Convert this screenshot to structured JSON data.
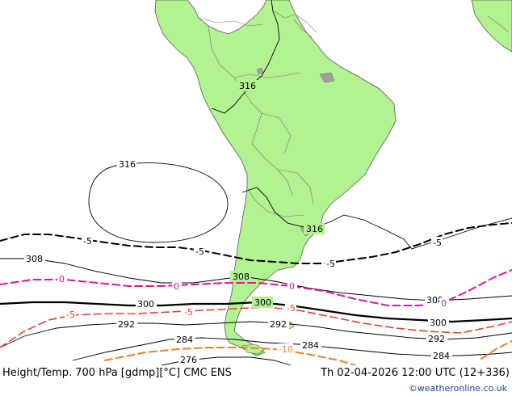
{
  "title": {
    "product": "Height/Temp. 700 hPa [gdmp][°C] CMC ENS",
    "valid_time": "Th 02-04-2026 12:00 UTC (12+336)",
    "credit": "©weatheronline.co.uk"
  },
  "colors": {
    "land": "#b3f291",
    "border": "#777777",
    "height_contour": "#000000",
    "temp_minus5_line": "#000000",
    "temp_0_line": "#e0149a",
    "temp_warm_line": "#e84030",
    "temp_minus10_line": "#f07d28",
    "lake": "#a0a0a0"
  },
  "height_labels": {
    "h316_a": "316",
    "h316_b": "316",
    "h316_c": "316",
    "h308_a": "308",
    "h308_b": "308",
    "h308_c": "308",
    "h300_a": "300",
    "h300_b": "300",
    "h300_c": "300",
    "h292_a": "292",
    "h292_b": "292",
    "h292_c": "292",
    "h284_a": "284",
    "h284_b": "284",
    "h284_c": "284",
    "h276_a": "276"
  },
  "temp_labels": {
    "tm5_a": "-5",
    "tm5_b": "-5",
    "tm5_c": "-5",
    "tm5_d": "-5",
    "t0_a": "0",
    "t0_b": "0",
    "t0_c": "0",
    "t0_d": "0",
    "tw_a": "-5",
    "tw_b": "-5",
    "tw_c": "-5",
    "tm10_a": "-10"
  }
}
